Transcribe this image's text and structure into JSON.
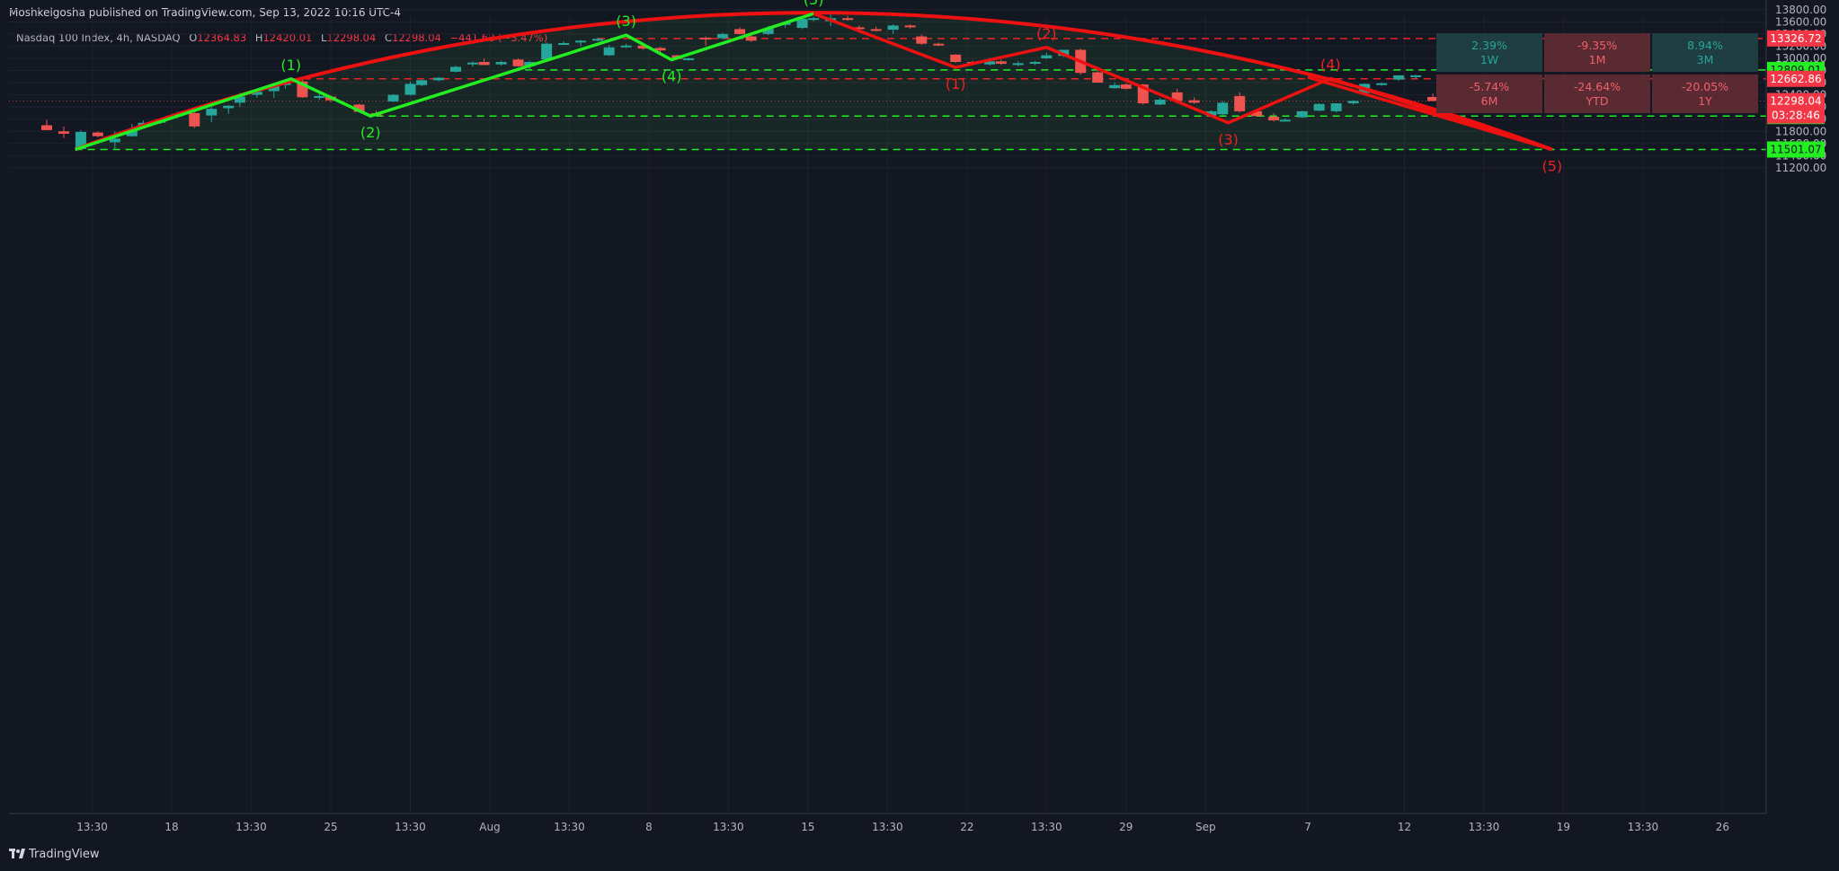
{
  "header": {
    "publish_text": "Moshkelgosha published on TradingView.com, Sep 13, 2022 10:16 UTC-4",
    "symbol": "Nasdaq 100 Index, 4h, NASDAQ",
    "open_label": "O",
    "open": "12364.83",
    "high_label": "H",
    "high": "12420.01",
    "low_label": "L",
    "low": "12298.04",
    "close_label": "C",
    "close": "12298.04",
    "change": "−441.68 (−3.47%)"
  },
  "performance": [
    {
      "value": "2.39%",
      "period": "1W",
      "tone": "pos"
    },
    {
      "value": "-9.35%",
      "period": "1M",
      "tone": "neg"
    },
    {
      "value": "8.94%",
      "period": "3M",
      "tone": "pos"
    },
    {
      "value": "-5.74%",
      "period": "6M",
      "tone": "neg"
    },
    {
      "value": "-24.64%",
      "period": "YTD",
      "tone": "neg"
    },
    {
      "value": "-20.05%",
      "period": "1Y",
      "tone": "neg"
    }
  ],
  "footer": {
    "brand": "TradingView"
  },
  "colors": {
    "up": "#26a69a",
    "down": "#ef5350",
    "green_line": "#22ee22",
    "red_line": "#ee1111",
    "bg": "#131722"
  },
  "chart_data": {
    "type": "candlestick",
    "currency": "USD",
    "ylim": [
      11050,
      13950
    ],
    "y_ticks": [
      11200,
      11400,
      11600,
      11800,
      12000,
      12200,
      12400,
      12600,
      12800,
      13000,
      13200,
      13400,
      13600,
      13800
    ],
    "x_range": [
      0,
      292
    ],
    "x_ticks": [
      {
        "label": "13:30",
        "x": 8
      },
      {
        "label": "18",
        "x": 22
      },
      {
        "label": "13:30",
        "x": 36
      },
      {
        "label": "25",
        "x": 50
      },
      {
        "label": "13:30",
        "x": 64
      },
      {
        "label": "Aug",
        "x": 78
      },
      {
        "label": "13:30",
        "x": 92
      },
      {
        "label": "8",
        "x": 106
      },
      {
        "label": "13:30",
        "x": 120
      },
      {
        "label": "15",
        "x": 134
      },
      {
        "label": "13:30",
        "x": 148
      },
      {
        "label": "22",
        "x": 162
      },
      {
        "label": "13:30",
        "x": 176
      },
      {
        "label": "29",
        "x": 190
      },
      {
        "label": "Sep",
        "x": 204
      },
      {
        "label": "7",
        "x": 222
      },
      {
        "label": "12",
        "x": 239
      },
      {
        "label": "13:30",
        "x": 253
      },
      {
        "label": "19",
        "x": 267
      },
      {
        "label": "13:30",
        "x": 281
      },
      {
        "label": "26",
        "x": 295
      }
    ],
    "candles": [
      {
        "x": 0,
        "o": 11900,
        "h": 11990,
        "l": 11830,
        "c": 11820
      },
      {
        "x": 3,
        "o": 11800,
        "h": 11880,
        "l": 11690,
        "c": 11760
      },
      {
        "x": 6,
        "o": 11510,
        "h": 11820,
        "l": 11500,
        "c": 11790
      },
      {
        "x": 9,
        "o": 11780,
        "h": 11800,
        "l": 11700,
        "c": 11720
      },
      {
        "x": 12,
        "o": 11620,
        "h": 11800,
        "l": 11500,
        "c": 11680
      },
      {
        "x": 15,
        "o": 11720,
        "h": 11920,
        "l": 11710,
        "c": 11820
      },
      {
        "x": 17,
        "o": 11890,
        "h": 11980,
        "l": 11870,
        "c": 11940
      },
      {
        "x": 20,
        "o": 11940,
        "h": 11990,
        "l": 11920,
        "c": 11980
      },
      {
        "x": 23,
        "o": 12070,
        "h": 12120,
        "l": 12020,
        "c": 12080
      },
      {
        "x": 26,
        "o": 12100,
        "h": 12150,
        "l": 11850,
        "c": 11880
      },
      {
        "x": 29,
        "o": 12060,
        "h": 12200,
        "l": 11950,
        "c": 12170
      },
      {
        "x": 32,
        "o": 12180,
        "h": 12230,
        "l": 12090,
        "c": 12220
      },
      {
        "x": 34,
        "o": 12270,
        "h": 12430,
        "l": 12200,
        "c": 12370
      },
      {
        "x": 37,
        "o": 12400,
        "h": 12490,
        "l": 12350,
        "c": 12450
      },
      {
        "x": 40,
        "o": 12460,
        "h": 12570,
        "l": 12350,
        "c": 12560
      },
      {
        "x": 42,
        "o": 12560,
        "h": 12650,
        "l": 12500,
        "c": 12630
      },
      {
        "x": 45,
        "o": 12620,
        "h": 12650,
        "l": 12350,
        "c": 12360
      },
      {
        "x": 48,
        "o": 12350,
        "h": 12420,
        "l": 12320,
        "c": 12380
      },
      {
        "x": 50,
        "o": 12370,
        "h": 12390,
        "l": 12280,
        "c": 12310
      },
      {
        "x": 55,
        "o": 12240,
        "h": 12250,
        "l": 12110,
        "c": 12120
      },
      {
        "x": 58,
        "o": 12100,
        "h": 12140,
        "l": 12060,
        "c": 12060
      },
      {
        "x": 61,
        "o": 12290,
        "h": 12410,
        "l": 12280,
        "c": 12400
      },
      {
        "x": 64,
        "o": 12400,
        "h": 12620,
        "l": 12390,
        "c": 12580
      },
      {
        "x": 66,
        "o": 12560,
        "h": 12650,
        "l": 12540,
        "c": 12640
      },
      {
        "x": 69,
        "o": 12640,
        "h": 12690,
        "l": 12620,
        "c": 12680
      },
      {
        "x": 72,
        "o": 12780,
        "h": 12880,
        "l": 12770,
        "c": 12860
      },
      {
        "x": 75,
        "o": 12900,
        "h": 12950,
        "l": 12860,
        "c": 12930
      },
      {
        "x": 77,
        "o": 12940,
        "h": 13000,
        "l": 12900,
        "c": 12890
      },
      {
        "x": 80,
        "o": 12900,
        "h": 12960,
        "l": 12880,
        "c": 12940
      },
      {
        "x": 83,
        "o": 12980,
        "h": 13000,
        "l": 12860,
        "c": 12870
      },
      {
        "x": 85,
        "o": 12870,
        "h": 12960,
        "l": 12800,
        "c": 12940
      },
      {
        "x": 88,
        "o": 12980,
        "h": 13260,
        "l": 12970,
        "c": 13240
      },
      {
        "x": 91,
        "o": 13240,
        "h": 13280,
        "l": 13220,
        "c": 13250
      },
      {
        "x": 94,
        "o": 13260,
        "h": 13300,
        "l": 13200,
        "c": 13290
      },
      {
        "x": 97,
        "o": 13300,
        "h": 13340,
        "l": 13280,
        "c": 13320
      },
      {
        "x": 99,
        "o": 13050,
        "h": 13220,
        "l": 13040,
        "c": 13180
      },
      {
        "x": 102,
        "o": 13200,
        "h": 13240,
        "l": 13170,
        "c": 13210
      },
      {
        "x": 105,
        "o": 13210,
        "h": 13230,
        "l": 13140,
        "c": 13160
      },
      {
        "x": 108,
        "o": 13170,
        "h": 13190,
        "l": 13090,
        "c": 13130
      },
      {
        "x": 111,
        "o": 13050,
        "h": 13060,
        "l": 12980,
        "c": 12990
      },
      {
        "x": 113,
        "o": 12980,
        "h": 13010,
        "l": 12960,
        "c": 13000
      },
      {
        "x": 116,
        "o": 13340,
        "h": 13360,
        "l": 13210,
        "c": 13330
      },
      {
        "x": 119,
        "o": 13330,
        "h": 13420,
        "l": 13310,
        "c": 13400
      },
      {
        "x": 122,
        "o": 13480,
        "h": 13510,
        "l": 13390,
        "c": 13400
      },
      {
        "x": 124,
        "o": 13360,
        "h": 13380,
        "l": 13270,
        "c": 13290
      },
      {
        "x": 127,
        "o": 13400,
        "h": 13530,
        "l": 13380,
        "c": 13490
      },
      {
        "x": 130,
        "o": 13550,
        "h": 13610,
        "l": 13500,
        "c": 13580
      },
      {
        "x": 133,
        "o": 13500,
        "h": 13660,
        "l": 13480,
        "c": 13650
      },
      {
        "x": 135,
        "o": 13650,
        "h": 13680,
        "l": 13610,
        "c": 13660
      },
      {
        "x": 138,
        "o": 13610,
        "h": 13720,
        "l": 13530,
        "c": 13660
      },
      {
        "x": 141,
        "o": 13660,
        "h": 13700,
        "l": 13620,
        "c": 13650
      },
      {
        "x": 143,
        "o": 13510,
        "h": 13540,
        "l": 13420,
        "c": 13480
      },
      {
        "x": 146,
        "o": 13480,
        "h": 13520,
        "l": 13440,
        "c": 13470
      },
      {
        "x": 149,
        "o": 13470,
        "h": 13560,
        "l": 13400,
        "c": 13540
      },
      {
        "x": 152,
        "o": 13540,
        "h": 13560,
        "l": 13490,
        "c": 13510
      },
      {
        "x": 154,
        "o": 13360,
        "h": 13390,
        "l": 13220,
        "c": 13240
      },
      {
        "x": 157,
        "o": 13240,
        "h": 13260,
        "l": 13200,
        "c": 13230
      },
      {
        "x": 160,
        "o": 13060,
        "h": 13070,
        "l": 12930,
        "c": 12940
      },
      {
        "x": 163,
        "o": 12940,
        "h": 12960,
        "l": 12890,
        "c": 12910
      },
      {
        "x": 166,
        "o": 12900,
        "h": 13010,
        "l": 12880,
        "c": 12950
      },
      {
        "x": 168,
        "o": 12950,
        "h": 12980,
        "l": 12890,
        "c": 12910
      },
      {
        "x": 171,
        "o": 12890,
        "h": 12950,
        "l": 12870,
        "c": 12920
      },
      {
        "x": 174,
        "o": 12920,
        "h": 12960,
        "l": 12890,
        "c": 12940
      },
      {
        "x": 176,
        "o": 13000,
        "h": 13090,
        "l": 12990,
        "c": 13050
      },
      {
        "x": 179,
        "o": 13040,
        "h": 13140,
        "l": 13020,
        "c": 13140
      },
      {
        "x": 182,
        "o": 13140,
        "h": 13160,
        "l": 12730,
        "c": 12760
      },
      {
        "x": 185,
        "o": 12770,
        "h": 12790,
        "l": 12600,
        "c": 12600
      },
      {
        "x": 188,
        "o": 12510,
        "h": 12600,
        "l": 12500,
        "c": 12560
      },
      {
        "x": 190,
        "o": 12570,
        "h": 12590,
        "l": 12490,
        "c": 12500
      },
      {
        "x": 193,
        "o": 12570,
        "h": 12580,
        "l": 12240,
        "c": 12260
      },
      {
        "x": 196,
        "o": 12240,
        "h": 12350,
        "l": 12230,
        "c": 12320
      },
      {
        "x": 199,
        "o": 12440,
        "h": 12500,
        "l": 12280,
        "c": 12300
      },
      {
        "x": 202,
        "o": 12310,
        "h": 12360,
        "l": 12250,
        "c": 12270
      },
      {
        "x": 205,
        "o": 12060,
        "h": 12150,
        "l": 12040,
        "c": 12130
      },
      {
        "x": 207,
        "o": 12080,
        "h": 12300,
        "l": 12060,
        "c": 12270
      },
      {
        "x": 210,
        "o": 12380,
        "h": 12440,
        "l": 12110,
        "c": 12130
      },
      {
        "x": 213,
        "o": 12130,
        "h": 12160,
        "l": 12040,
        "c": 12050
      },
      {
        "x": 216,
        "o": 12040,
        "h": 12100,
        "l": 11960,
        "c": 11980
      },
      {
        "x": 218,
        "o": 11970,
        "h": 12010,
        "l": 11960,
        "c": 11990
      },
      {
        "x": 221,
        "o": 12030,
        "h": 12140,
        "l": 12020,
        "c": 12130
      },
      {
        "x": 224,
        "o": 12140,
        "h": 12260,
        "l": 12130,
        "c": 12250
      },
      {
        "x": 227,
        "o": 12130,
        "h": 12260,
        "l": 12110,
        "c": 12260
      },
      {
        "x": 230,
        "o": 12260,
        "h": 12310,
        "l": 12240,
        "c": 12300
      },
      {
        "x": 232,
        "o": 12430,
        "h": 12590,
        "l": 12420,
        "c": 12580
      },
      {
        "x": 235,
        "o": 12580,
        "h": 12600,
        "l": 12550,
        "c": 12590
      },
      {
        "x": 238,
        "o": 12650,
        "h": 12720,
        "l": 12630,
        "c": 12720
      },
      {
        "x": 241,
        "o": 12720,
        "h": 12730,
        "l": 12660,
        "c": 12720
      },
      {
        "x": 244,
        "o": 12364.83,
        "h": 12420.01,
        "l": 12298.04,
        "c": 12298.04
      }
    ],
    "horizontal_levels": [
      {
        "value": 13326.72,
        "label": "13326.72",
        "color": "red",
        "from_x": 97
      },
      {
        "value": 12809.01,
        "label": "12809.01",
        "color": "green",
        "from_x": 82
      },
      {
        "value": 12662.86,
        "label": "12662.86",
        "color": "red",
        "from_x": 43
      },
      {
        "value": 12051.21,
        "label": "12051.21",
        "color": "green",
        "from_x": 58
      },
      {
        "value": 11501.07,
        "label": "11501.07",
        "color": "green",
        "from_x": 5
      }
    ],
    "last_price": {
      "value": 12298.04,
      "label": "12298.04",
      "countdown": "03:28:46"
    },
    "green_wave": [
      {
        "x": 5,
        "y": 11501,
        "label": ""
      },
      {
        "x": 43,
        "y": 12662,
        "label": "(1)"
      },
      {
        "x": 57,
        "y": 12051,
        "label": "(2)"
      },
      {
        "x": 102,
        "y": 13380,
        "label": "(3)"
      },
      {
        "x": 110,
        "y": 12975,
        "label": "(4)"
      },
      {
        "x": 135,
        "y": 13735,
        "label": "(5)"
      }
    ],
    "red_wave": [
      {
        "x": 135,
        "y": 13735,
        "label": ""
      },
      {
        "x": 160,
        "y": 12850,
        "label": "(1)"
      },
      {
        "x": 176,
        "y": 13180,
        "label": "(2)"
      },
      {
        "x": 208,
        "y": 11940,
        "label": "(3)"
      },
      {
        "x": 226,
        "y": 12670,
        "label": "(4)"
      },
      {
        "x": 265,
        "y": 11501,
        "label": "(5)"
      }
    ],
    "red_channel_upper": [
      {
        "x": 222,
        "y": 12690
      },
      {
        "x": 265,
        "y": 11501
      }
    ],
    "arc": {
      "start_x": 5,
      "start_y": 11501,
      "peak_x": 135,
      "peak_y": 13750,
      "end_x": 265,
      "end_y": 11501
    }
  }
}
